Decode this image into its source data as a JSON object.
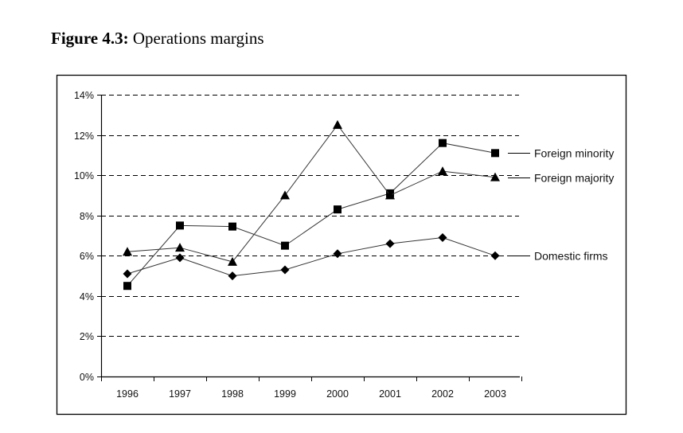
{
  "figure": {
    "label": "Figure 4.3:",
    "caption": "Operations margins"
  },
  "chart_data": {
    "type": "line",
    "title": "Figure 4.3: Operations margins",
    "xlabel": "",
    "ylabel": "",
    "categories": [
      "1996",
      "1997",
      "1998",
      "1999",
      "2000",
      "2001",
      "2002",
      "2003"
    ],
    "ylim": [
      0,
      14
    ],
    "yticks": [
      0,
      2,
      4,
      6,
      8,
      10,
      12,
      14
    ],
    "ytick_labels": [
      "0%",
      "2%",
      "4%",
      "6%",
      "8%",
      "10%",
      "12%",
      "14%"
    ],
    "y_unit": "%",
    "grid": "horizontal dashed",
    "legend_placement": "right (inline labels at line ends)",
    "series": [
      {
        "name": "Foreign minority",
        "marker": "square",
        "color": "#000000",
        "values": [
          4.5,
          7.5,
          7.45,
          6.5,
          8.3,
          9.1,
          11.6,
          11.1
        ]
      },
      {
        "name": "Foreign majority",
        "marker": "triangle",
        "color": "#000000",
        "values": [
          6.2,
          6.4,
          5.7,
          9.0,
          12.5,
          9.0,
          10.2,
          9.9
        ]
      },
      {
        "name": "Domestic firms",
        "marker": "diamond",
        "color": "#000000",
        "values": [
          5.1,
          5.9,
          5.0,
          5.3,
          6.1,
          6.6,
          6.9,
          6.0
        ]
      }
    ]
  }
}
